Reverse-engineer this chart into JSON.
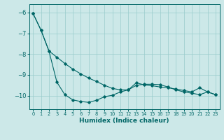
{
  "xlabel": "Humidex (Indice chaleur)",
  "background_color": "#cce8e8",
  "grid_color": "#99cccc",
  "line_color": "#006666",
  "xlim": [
    -0.5,
    23.5
  ],
  "ylim": [
    -10.65,
    -5.6
  ],
  "xticks": [
    0,
    1,
    2,
    3,
    4,
    5,
    6,
    7,
    8,
    9,
    10,
    11,
    12,
    13,
    14,
    15,
    16,
    17,
    18,
    19,
    20,
    21,
    22,
    23
  ],
  "yticks": [
    -10,
    -9,
    -8,
    -7,
    -6
  ],
  "line1_x": [
    0,
    1,
    2,
    3,
    4,
    5,
    6,
    7,
    8,
    9,
    10,
    11,
    12,
    13,
    14,
    15,
    16,
    17,
    18,
    19,
    20,
    21,
    22,
    23
  ],
  "line1_y": [
    -6.05,
    -6.85,
    -7.85,
    -9.35,
    -9.95,
    -10.2,
    -10.28,
    -10.32,
    -10.22,
    -10.05,
    -9.98,
    -9.82,
    -9.72,
    -9.5,
    -9.45,
    -9.45,
    -9.47,
    -9.58,
    -9.72,
    -9.82,
    -9.88,
    -9.95,
    -9.82,
    -9.95
  ],
  "line2_x": [
    0,
    1,
    2,
    3,
    4,
    5,
    6,
    7,
    8,
    9,
    10,
    11,
    12,
    13,
    14,
    15,
    16,
    17,
    18,
    19,
    20,
    21,
    22,
    23
  ],
  "line2_y": [
    -6.05,
    -6.85,
    -7.85,
    -8.15,
    -8.45,
    -8.72,
    -8.95,
    -9.15,
    -9.32,
    -9.5,
    -9.65,
    -9.72,
    -9.72,
    -9.38,
    -9.48,
    -9.52,
    -9.58,
    -9.62,
    -9.68,
    -9.75,
    -9.82,
    -9.62,
    -9.82,
    -9.95
  ],
  "marker": "D",
  "markersize": 1.8,
  "linewidth": 0.8,
  "xlabel_fontsize": 6.5,
  "xlabel_fontweight": "bold",
  "xtick_fontsize": 4.8,
  "ytick_fontsize": 6.0
}
